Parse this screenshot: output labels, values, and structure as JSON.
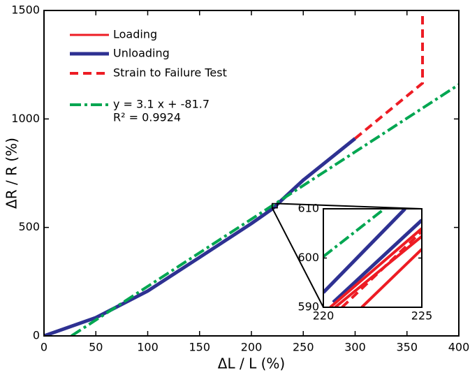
{
  "chart_data": [
    {
      "type": "line",
      "xlabel": "ΔL / L (%)",
      "ylabel": "ΔR / R (%)",
      "xlim": [
        0,
        400
      ],
      "ylim": [
        0,
        1500
      ],
      "xticks": [
        0,
        50,
        100,
        150,
        200,
        250,
        300,
        350,
        400
      ],
      "yticks": [
        0,
        500,
        1000,
        1500
      ],
      "legend": "upper left",
      "annotation": "R² = 0.9924",
      "series": [
        {
          "name": "Loading",
          "color": "#ed1c24",
          "width": 3,
          "dash": "solid",
          "x": [
            0,
            50,
            100,
            150,
            200,
            220
          ],
          "values": [
            0,
            85,
            208,
            362,
            518,
            585
          ]
        },
        {
          "name": "Unloading",
          "color": "#2e3192",
          "width": 5,
          "dash": "solid",
          "x": [
            0,
            50,
            100,
            150,
            200,
            220,
            250,
            300
          ],
          "values": [
            0,
            84,
            207,
            362,
            518,
            585,
            718,
            910
          ]
        },
        {
          "name": "Strain to Failure Test",
          "color": "#ed1c24",
          "width": 4,
          "dash": "dashed",
          "x": [
            300,
            365,
            365
          ],
          "values": [
            910,
            1165,
            1500
          ]
        },
        {
          "name": "y = 3.1 x + -81.7",
          "color": "#00a651",
          "width": 4,
          "dash": "dashdot",
          "x": [
            26.4,
            400
          ],
          "values": [
            0,
            1158.3
          ]
        }
      ]
    },
    {
      "type": "line",
      "xlim": [
        220,
        225
      ],
      "ylim": [
        590,
        610
      ],
      "xticks": [
        220,
        225
      ],
      "yticks": [
        590,
        600,
        610
      ],
      "series": [
        {
          "color": "#00a651",
          "width": 4,
          "dash": "dashdot",
          "x": [
            220,
            223.1
          ],
          "values": [
            600.3,
            610
          ]
        },
        {
          "color": "#2e3192",
          "width": 5,
          "dash": "solid",
          "x": [
            220,
            224.15
          ],
          "values": [
            593,
            610
          ]
        },
        {
          "color": "#2e3192",
          "width": 5,
          "dash": "solid",
          "x": [
            220.5,
            225
          ],
          "values": [
            591,
            607.7
          ]
        },
        {
          "color": "#ed1c24",
          "width": 4,
          "dash": "solid",
          "x": [
            220.35,
            225
          ],
          "values": [
            590,
            606
          ]
        },
        {
          "color": "#ed1c24",
          "width": 4,
          "dash": "solid",
          "x": [
            220.6,
            225
          ],
          "values": [
            590,
            604.4
          ]
        },
        {
          "color": "#ed1c24",
          "width": 4,
          "dash": "dashed",
          "x": [
            220.95,
            225
          ],
          "values": [
            590,
            605.4
          ]
        },
        {
          "color": "#ed1c24",
          "width": 4,
          "dash": "solid",
          "x": [
            221.95,
            225
          ],
          "values": [
            590,
            601.8
          ]
        }
      ]
    }
  ]
}
